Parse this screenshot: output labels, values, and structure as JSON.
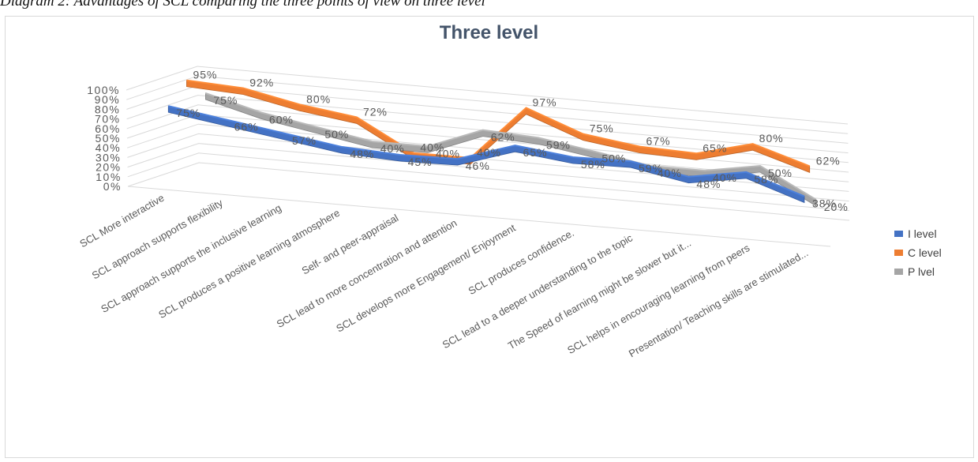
{
  "caption": "Diagram 2: Advantages of SCL comparing the three points of view on three level",
  "chart_data": {
    "type": "line",
    "title": "Three level",
    "categories": [
      "SCL More interactive",
      "SCL approach supports flexibility",
      "SCL approach supports the inclusive learning",
      "SCL produces a positive learning atmosphere",
      "Self- and peer-appraisal",
      "SCL lead to more concentration and attention",
      "SCL develops more Engagement/ Enjoyment",
      "SCL produces confidence.",
      "SCL lead to a deeper understanding to the topic",
      "The Speed of learning might be slower but it...",
      "SCL helps in encouraging learning from peers",
      "Presentation/ Teaching skills are stimulated..."
    ],
    "y_ticks": [
      "100%",
      "90%",
      "80%",
      "70%",
      "60%",
      "50%",
      "40%",
      "30%",
      "20%",
      "10%",
      "0%"
    ],
    "ylim": [
      0,
      100
    ],
    "grid": true,
    "legend_position": "right",
    "series": [
      {
        "name": "I level",
        "color": "#4472c4",
        "values": [
          75,
          66,
          57,
          48,
          45,
          46,
          65,
          58,
          59,
          48,
          58,
          38
        ],
        "labels": [
          "75%",
          "66%",
          "57%",
          "48%",
          "45%",
          "46%",
          "65%",
          "58%",
          "59%",
          "48%",
          "58%",
          "38%"
        ]
      },
      {
        "name": "C level",
        "color": "#ed7d31",
        "values": [
          95,
          92,
          80,
          72,
          40,
          40,
          97,
          75,
          67,
          65,
          80,
          62
        ],
        "labels": [
          "95%",
          "92%",
          "80%",
          "72%",
          "40%",
          "40%",
          "97%",
          "75%",
          "67%",
          "65%",
          "80%",
          "62%"
        ]
      },
      {
        "name": "P lvel",
        "color": "#a5a5a5",
        "values": [
          75,
          60,
          50,
          40,
          40,
          62,
          59,
          50,
          40,
          40,
          50,
          20
        ],
        "labels": [
          "75%",
          "60%",
          "50%",
          "40%",
          "40%",
          "62%",
          "59%",
          "50%",
          "40%",
          "40%",
          "50%",
          "20%"
        ]
      }
    ]
  }
}
